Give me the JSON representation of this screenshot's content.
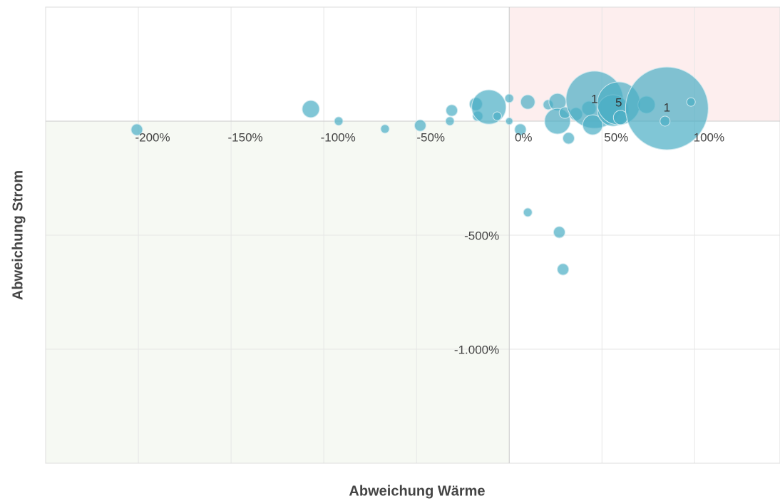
{
  "chart_data": {
    "type": "bubble",
    "xlabel": "Abweichung Wärme",
    "ylabel": "Abweichung Strom",
    "xlim": [
      -250,
      146
    ],
    "ylim": [
      -1500,
      500
    ],
    "xticks": [
      {
        "value": -200,
        "label": "-200%"
      },
      {
        "value": -150,
        "label": "-150%"
      },
      {
        "value": -100,
        "label": "-100%"
      },
      {
        "value": -50,
        "label": "-50%"
      },
      {
        "value": 0,
        "label": "0%"
      },
      {
        "value": 50,
        "label": "50%"
      },
      {
        "value": 100,
        "label": "100%"
      }
    ],
    "yticks": [
      {
        "value": -1000,
        "label": "-1.000%"
      },
      {
        "value": -500,
        "label": "-500%"
      }
    ],
    "grid": true,
    "quadrant_colors": {
      "upper_right": "#fdeeee",
      "lower_left": "#f6f9f3"
    },
    "series": [
      {
        "color": "#4aaec4",
        "x": [
          -200.8,
          -107,
          -92,
          -67,
          -48,
          -32,
          -31,
          -18,
          -17,
          -11,
          -6.5,
          0,
          0,
          6,
          10,
          10,
          21,
          26,
          27,
          29,
          26,
          30,
          32,
          36,
          43,
          46,
          45,
          56,
          59,
          60,
          74,
          85,
          84,
          98
        ],
        "values": [
          -37.5,
          53,
          0,
          -34,
          -19,
          0,
          47,
          75,
          22,
          62,
          22,
          100,
          0,
          -37,
          84,
          -400,
          72,
          84,
          -487,
          -650,
          0,
          37,
          -75,
          31,
          56,
          94,
          -16,
          47,
          78,
          16,
          72,
          56,
          0,
          84
        ],
        "sizes": [
          8,
          12,
          6,
          6,
          8,
          6,
          8,
          9,
          7,
          24,
          6,
          6,
          5,
          8,
          10,
          6,
          7,
          12,
          8,
          8,
          18,
          8,
          8,
          9,
          10,
          40,
          14,
          22,
          30,
          10,
          12,
          58,
          7,
          6
        ],
        "labels": [
          null,
          null,
          null,
          null,
          null,
          null,
          null,
          null,
          null,
          null,
          null,
          null,
          null,
          null,
          null,
          null,
          null,
          null,
          null,
          null,
          null,
          null,
          null,
          null,
          null,
          "1",
          null,
          null,
          "5",
          null,
          null,
          "1",
          null,
          null
        ]
      }
    ]
  }
}
